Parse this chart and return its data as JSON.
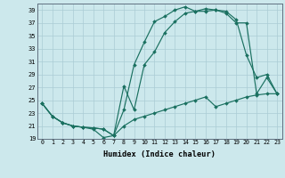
{
  "xlabel": "Humidex (Indice chaleur)",
  "background_color": "#cce8ec",
  "grid_color": "#aaccd4",
  "line_color": "#1a7060",
  "xlim": [
    -0.5,
    23.5
  ],
  "ylim": [
    19,
    40
  ],
  "xticks": [
    0,
    1,
    2,
    3,
    4,
    5,
    6,
    7,
    8,
    9,
    10,
    11,
    12,
    13,
    14,
    15,
    16,
    17,
    18,
    19,
    20,
    21,
    22,
    23
  ],
  "yticks": [
    19,
    21,
    23,
    25,
    27,
    29,
    31,
    33,
    35,
    37,
    39
  ],
  "line1_x": [
    0,
    1,
    2,
    3,
    4,
    5,
    6,
    7,
    8,
    9,
    10,
    11,
    12,
    13,
    14,
    15,
    16,
    17,
    18,
    19,
    20,
    21,
    22,
    23
  ],
  "line1_y": [
    24.5,
    22.5,
    21.5,
    21.0,
    20.8,
    20.7,
    20.5,
    19.5,
    21.0,
    22.0,
    22.5,
    23.0,
    23.5,
    24.0,
    24.5,
    25.0,
    25.5,
    24.0,
    24.5,
    25.0,
    25.5,
    25.8,
    26.0,
    26.0
  ],
  "line2_x": [
    0,
    1,
    2,
    3,
    4,
    5,
    6,
    7,
    8,
    9,
    10,
    11,
    12,
    13,
    14,
    15,
    16,
    17,
    18,
    19,
    20,
    21,
    22,
    23
  ],
  "line2_y": [
    24.5,
    22.5,
    21.5,
    21.0,
    20.8,
    20.7,
    20.5,
    19.5,
    23.5,
    30.5,
    34.0,
    37.2,
    38.0,
    39.0,
    39.5,
    38.8,
    38.8,
    39.0,
    38.5,
    37.0,
    37.0,
    26.0,
    28.5,
    26.0
  ],
  "line3_x": [
    0,
    1,
    2,
    3,
    4,
    5,
    6,
    7,
    8,
    9,
    10,
    11,
    12,
    13,
    14,
    15,
    16,
    17,
    18,
    19,
    20,
    21,
    22,
    23
  ],
  "line3_y": [
    24.5,
    22.5,
    21.5,
    21.0,
    20.8,
    20.5,
    19.2,
    19.5,
    27.2,
    23.5,
    30.5,
    32.5,
    35.5,
    37.2,
    38.5,
    38.8,
    39.2,
    39.0,
    38.8,
    37.5,
    32.0,
    28.5,
    29.0,
    26.0
  ]
}
